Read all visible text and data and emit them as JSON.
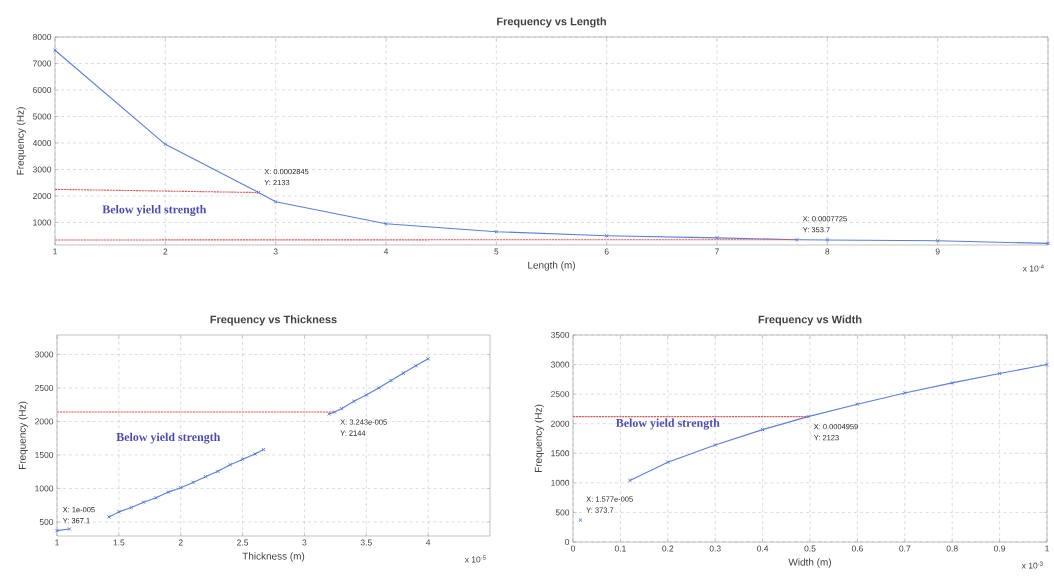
{
  "chart_data": [
    {
      "type": "line",
      "title": "Frequency vs Length",
      "xlabel": "Length (m)",
      "ylabel": "Frequency (Hz)",
      "grid": true,
      "marker": "cross",
      "line_style": "solid",
      "xlim": [
        1,
        10
      ],
      "ylim": [
        150,
        8000
      ],
      "xticks": [
        1,
        2,
        3,
        4,
        5,
        6,
        7,
        8,
        9,
        {
          "value": 10,
          "label": null
        }
      ],
      "yticks": [
        1000,
        2000,
        3000,
        4000,
        5000,
        6000,
        7000,
        8000
      ],
      "series": [
        {
          "color": "#5b7fd6",
          "x": [
            1,
            2,
            2.845,
            3,
            4,
            5,
            6,
            7,
            7.725,
            8,
            9,
            10
          ],
          "values": [
            7500,
            3950,
            2130,
            1780,
            950,
            650,
            500,
            420,
            350,
            340,
            310,
            210
          ]
        },
        {
          "color": "#e05a5a",
          "line_style": "dashed",
          "marker": "none",
          "x": [
            1,
            2.845
          ],
          "values": [
            2250,
            2130
          ]
        },
        {
          "color": "#e05a5a",
          "line_style": "dashed",
          "marker": "none",
          "x": [
            1,
            7.725
          ],
          "values": [
            340,
            350
          ]
        }
      ],
      "annotations": [
        "Below yield strength",
        "x 10$^{-4}$",
        {
          "text": "X: 0.0002845",
          "x": 2.845,
          "y": 2130
        },
        {
          "text": "Y: 2133",
          "x": 2.845,
          "y": 2130
        },
        {
          "text": "X: 0.0007725",
          "x": 7.725,
          "y": 350
        },
        {
          "text": "Y: 353.7",
          "x": 7.725,
          "y": 350
        }
      ]
    },
    {
      "type": "line",
      "title": "Frequency vs Thickness",
      "xlabel": "Thickness (m)",
      "ylabel": "Frequency (Hz)",
      "grid": true,
      "marker": "cross",
      "line_style": "solid",
      "xlim": [
        1,
        4.5
      ],
      "ylim": [
        290,
        3290
      ],
      "xticks": [
        1,
        1.5,
        2,
        2.5,
        3,
        3.5,
        4
      ],
      "yticks": [
        500,
        1000,
        1500,
        2000,
        2500,
        3000
      ],
      "series": [
        {
          "color": "#5b7fd6",
          "x": [
            1,
            1.1,
            1.25,
            1.42,
            1.5,
            1.6,
            1.7,
            1.8,
            1.9,
            2,
            2.1,
            2.2,
            2.3,
            2.4,
            2.5,
            2.6,
            2.67,
            2.9,
            3.2,
            3.243,
            3.3,
            3.4,
            3.5,
            3.6,
            3.7,
            3.8,
            3.9,
            4
          ],
          "values": [
            370,
            395,
            null,
            575,
            650,
            715,
            795,
            860,
            945,
            1010,
            1090,
            1175,
            1255,
            1355,
            1435,
            1515,
            1580,
            null,
            2110,
            2140,
            2190,
            2300,
            2395,
            2500,
            2610,
            2720,
            2830,
            2935
          ]
        },
        {
          "color": "#e05a5a",
          "line_style": "dashed",
          "marker": "none",
          "x": [
            1,
            3.243
          ],
          "values": [
            2140,
            2140
          ]
        }
      ],
      "annotations": [
        "Below yield strength",
        "x 10$^{-5}$",
        {
          "text": "X: 1e-005",
          "x": 1,
          "y": 370
        },
        {
          "text": "Y: 367.1",
          "x": 1,
          "y": 370
        },
        {
          "text": "X: 3.243e-005",
          "x": 3.243,
          "y": 2140
        },
        {
          "text": "Y: 2144",
          "x": 3.243,
          "y": 2140
        }
      ]
    },
    {
      "type": "line",
      "title": "Frequency vs Width",
      "xlabel": "Width (m)",
      "ylabel": "Frequency (Hz)",
      "grid": true,
      "marker": "cross",
      "line_style": "solid",
      "xlim": [
        0,
        1
      ],
      "ylim": [
        0,
        3500
      ],
      "xticks": [
        0,
        0.1,
        0.2,
        0.3,
        0.4,
        0.5,
        0.6,
        0.7,
        0.8,
        0.9,
        1
      ],
      "yticks": [
        0,
        500,
        1000,
        1500,
        2000,
        2500,
        3000,
        3500
      ],
      "series": [
        {
          "color": "#5b7fd6",
          "x": [
            0.01577,
            0.06,
            0.12,
            0.2,
            0.3,
            0.4,
            0.4959,
            0.6,
            0.7,
            0.8,
            0.9,
            1
          ],
          "values": [
            370,
            null,
            1040,
            1350,
            1640,
            1900,
            2120,
            2330,
            2520,
            2690,
            2850,
            3000
          ]
        },
        {
          "color": "#e05a5a",
          "line_style": "dashed",
          "marker": "none",
          "x": [
            0,
            0.4959
          ],
          "values": [
            2120,
            2120
          ]
        }
      ],
      "annotations": [
        "Below yield strength",
        "x 10$^{-3}$",
        {
          "text": "X: 1.577e-005",
          "x": 0.01577,
          "y": 370
        },
        {
          "text": "Y: 373.7",
          "x": 0.01577,
          "y": 370
        },
        {
          "text": "X: 0.0004959",
          "x": 0.4959,
          "y": 2120
        },
        {
          "text": "Y: 2123",
          "x": 0.4959,
          "y": 2120
        }
      ]
    }
  ]
}
